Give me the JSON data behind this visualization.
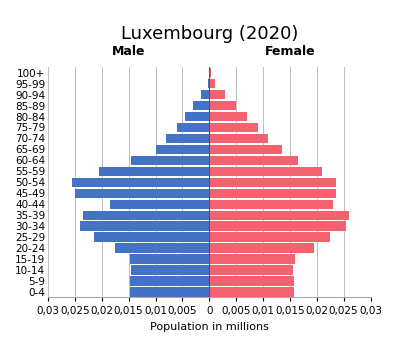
{
  "title": "Luxembourg (2020)",
  "xlabel": "Population in millions",
  "male_label": "Male",
  "female_label": "Female",
  "age_groups": [
    "0-4",
    "5-9",
    "10-14",
    "15-19",
    "20-24",
    "25-29",
    "30-34",
    "35-39",
    "40-44",
    "45-49",
    "50-54",
    "55-59",
    "60-64",
    "65-69",
    "70-74",
    "75-79",
    "80-84",
    "85-89",
    "90-94",
    "95-99",
    "100+"
  ],
  "male_values": [
    0.0148,
    0.0148,
    0.0145,
    0.0148,
    0.0175,
    0.0215,
    0.024,
    0.0235,
    0.0185,
    0.025,
    0.0255,
    0.0205,
    0.0145,
    0.01,
    0.008,
    0.006,
    0.0045,
    0.003,
    0.0015,
    0.0003,
    0.0001
  ],
  "female_values": [
    0.0158,
    0.0158,
    0.0155,
    0.016,
    0.0195,
    0.0225,
    0.0255,
    0.026,
    0.023,
    0.0235,
    0.0235,
    0.021,
    0.0165,
    0.0135,
    0.011,
    0.009,
    0.007,
    0.005,
    0.003,
    0.001,
    0.0004
  ],
  "male_color": "#4472C4",
  "female_color": "#F4626F",
  "xlim": 0.03,
  "background_color": "#ffffff",
  "grid_color": "#c0c0c0",
  "title_fontsize": 13,
  "label_fontsize": 8,
  "tick_fontsize": 7.5,
  "xtick_vals": [
    -0.03,
    -0.025,
    -0.02,
    -0.015,
    -0.01,
    -0.005,
    0,
    0.005,
    0.01,
    0.015,
    0.02,
    0.025,
    0.03
  ],
  "xtick_labels": [
    "0,03",
    "0,025",
    "0,02",
    "0,015",
    "0,01",
    "0,005",
    "0",
    "0,005",
    "0,01",
    "0,015",
    "0,02",
    "0,025",
    "0,03"
  ]
}
